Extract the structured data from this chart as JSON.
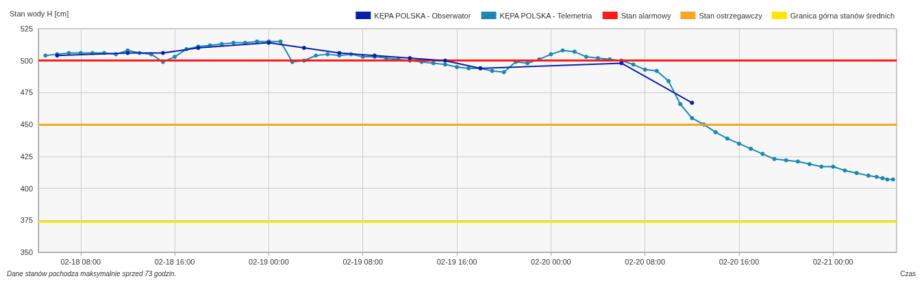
{
  "chart_data": {
    "type": "line",
    "ylabel": "Stan wody H [cm]",
    "xlabel": "Czas",
    "annotations": [
      "Dane stanów pochodza maksymalnie sprzed 73 godzin."
    ],
    "xlim": [
      "--02-18T04:24",
      "--02-21T05:24"
    ],
    "xticks": [
      {
        "value": "--02-18T08:00",
        "label": "02-18 08:00"
      },
      {
        "value": "--02-18T16:00",
        "label": "02-18 16:00"
      },
      {
        "value": "--02-19T00:00",
        "label": "02-19 00:00"
      },
      {
        "value": "--02-19T08:00",
        "label": "02-19 08:00"
      },
      {
        "value": "--02-19T16:00",
        "label": "02-19 16:00"
      },
      {
        "value": "--02-20T00:00",
        "label": "02-20 00:00"
      },
      {
        "value": "--02-20T08:00",
        "label": "02-20 08:00"
      },
      {
        "value": "--02-20T16:00",
        "label": "02-20 16:00"
      },
      {
        "value": "--02-21T00:00",
        "label": "02-21 00:00"
      }
    ],
    "ylim": [
      350,
      525
    ],
    "yticks": [
      350,
      375,
      400,
      425,
      450,
      475,
      500,
      525
    ],
    "grid": true,
    "legend": "top right",
    "marker": "circle",
    "line_style": "solid",
    "series": [
      {
        "name": "KĘPA POLSKA - Obserwator",
        "color": "#0a1fa8",
        "x": [
          "--02-18T06:00",
          "--02-18T12:00",
          "--02-18T15:00",
          "--02-18T18:00",
          "--02-19T00:00",
          "--02-19T03:00",
          "--02-19T06:00",
          "--02-19T09:00",
          "--02-19T12:00",
          "--02-19T15:00",
          "--02-19T18:00",
          "--02-20T06:00",
          "--02-20T12:00"
        ],
        "values": [
          504,
          506,
          506,
          510,
          514,
          510,
          506,
          504,
          502,
          500,
          494,
          498,
          467
        ]
      },
      {
        "name": "KĘPA POLSKA - Telemetria",
        "color": "#1a88b0",
        "x": [
          "--02-18T05:00",
          "--02-18T06:00",
          "--02-18T07:00",
          "--02-18T08:00",
          "--02-18T09:00",
          "--02-18T10:00",
          "--02-18T11:00",
          "--02-18T12:00",
          "--02-18T13:00",
          "--02-18T14:00",
          "--02-18T15:00",
          "--02-18T16:00",
          "--02-18T17:00",
          "--02-18T18:00",
          "--02-18T19:00",
          "--02-18T20:00",
          "--02-18T21:00",
          "--02-18T22:00",
          "--02-18T23:00",
          "--02-19T00:00",
          "--02-19T01:00",
          "--02-19T02:00",
          "--02-19T03:00",
          "--02-19T04:00",
          "--02-19T05:00",
          "--02-19T06:00",
          "--02-19T07:00",
          "--02-19T08:00",
          "--02-19T09:00",
          "--02-19T10:00",
          "--02-19T11:00",
          "--02-19T12:00",
          "--02-19T13:00",
          "--02-19T14:00",
          "--02-19T15:00",
          "--02-19T16:00",
          "--02-19T17:00",
          "--02-19T18:00",
          "--02-19T19:00",
          "--02-19T20:00",
          "--02-19T21:00",
          "--02-19T22:00",
          "--02-19T23:00",
          "--02-20T00:00",
          "--02-20T01:00",
          "--02-20T02:00",
          "--02-20T03:00",
          "--02-20T04:00",
          "--02-20T05:00",
          "--02-20T06:00",
          "--02-20T07:00",
          "--02-20T08:00",
          "--02-20T09:00",
          "--02-20T10:00",
          "--02-20T11:00",
          "--02-20T12:00",
          "--02-20T13:00",
          "--02-20T14:00",
          "--02-20T15:00",
          "--02-20T16:00",
          "--02-20T17:00",
          "--02-20T18:00",
          "--02-20T19:00",
          "--02-20T20:00",
          "--02-20T21:00",
          "--02-20T22:00",
          "--02-20T23:00",
          "--02-21T00:00",
          "--02-21T01:00",
          "--02-21T02:00",
          "--02-21T03:00",
          "--02-21T03:42",
          "--02-21T04:12",
          "--02-21T04:36",
          "--02-21T05:06"
        ],
        "values": [
          504,
          505,
          506,
          506,
          506,
          506,
          505,
          508,
          506,
          505,
          499,
          503,
          509,
          511,
          512,
          513,
          514,
          514,
          515,
          515,
          515,
          499,
          500,
          504,
          505,
          504,
          505,
          503,
          503,
          502,
          501,
          500,
          499,
          498,
          497,
          495,
          494,
          494,
          492,
          491,
          499,
          498,
          501,
          505,
          508,
          507,
          503,
          502,
          501,
          500,
          497,
          493,
          492,
          484,
          466,
          455,
          450,
          444,
          439,
          435,
          431,
          427,
          423,
          422,
          421,
          419,
          417,
          417,
          414,
          412,
          410,
          409,
          408,
          407,
          407
        ]
      }
    ],
    "ref_lines": [
      {
        "axis": "y",
        "value": 500,
        "label": "Stan alarmowy",
        "color": "#ff1a1a"
      },
      {
        "axis": "y",
        "value": 450,
        "label": "Stan ostrzegawczy",
        "color": "#f5a623"
      },
      {
        "axis": "y",
        "value": 374,
        "label": "Granica górna stanów średnich",
        "color": "#ffe600"
      }
    ]
  }
}
